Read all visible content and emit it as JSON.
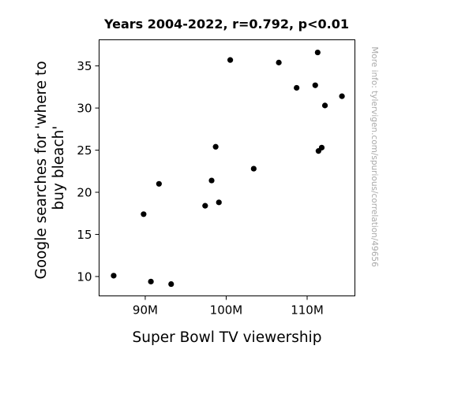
{
  "chart_data": {
    "type": "scatter",
    "title": "Years 2004-2022, r=0.792, p<0.01",
    "xlabel": "Super Bowl TV viewership",
    "ylabel_lines": [
      "Google searches for 'where to",
      "buy bleach'"
    ],
    "watermark": "More info: tylervigen.com/spurious/correlation/49656",
    "xlim": [
      84300000,
      115900000
    ],
    "ylim": [
      7.7,
      38.1
    ],
    "x_ticks": [
      {
        "value": 90000000,
        "label": "90M"
      },
      {
        "value": 100000000,
        "label": "100M"
      },
      {
        "value": 110000000,
        "label": "110M"
      }
    ],
    "y_ticks": [
      {
        "value": 10,
        "label": "10"
      },
      {
        "value": 15,
        "label": "15"
      },
      {
        "value": 20,
        "label": "20"
      },
      {
        "value": 25,
        "label": "25"
      },
      {
        "value": 30,
        "label": "30"
      },
      {
        "value": 35,
        "label": "35"
      }
    ],
    "point_color": "#000000",
    "grid": false,
    "points": [
      {
        "x": 86100000,
        "y": 10.1
      },
      {
        "x": 89800000,
        "y": 17.4
      },
      {
        "x": 90700000,
        "y": 9.4
      },
      {
        "x": 91700000,
        "y": 21.0
      },
      {
        "x": 93200000,
        "y": 9.1
      },
      {
        "x": 97400000,
        "y": 18.4
      },
      {
        "x": 98200000,
        "y": 21.4
      },
      {
        "x": 98700000,
        "y": 25.4
      },
      {
        "x": 99100000,
        "y": 18.8
      },
      {
        "x": 100500000,
        "y": 35.7
      },
      {
        "x": 103400000,
        "y": 22.8
      },
      {
        "x": 106500000,
        "y": 35.4
      },
      {
        "x": 108700000,
        "y": 32.4
      },
      {
        "x": 111000000,
        "y": 32.7
      },
      {
        "x": 111300000,
        "y": 36.6
      },
      {
        "x": 111400000,
        "y": 24.9
      },
      {
        "x": 111800000,
        "y": 25.3
      },
      {
        "x": 112200000,
        "y": 30.3
      },
      {
        "x": 114300000,
        "y": 31.4
      }
    ]
  }
}
